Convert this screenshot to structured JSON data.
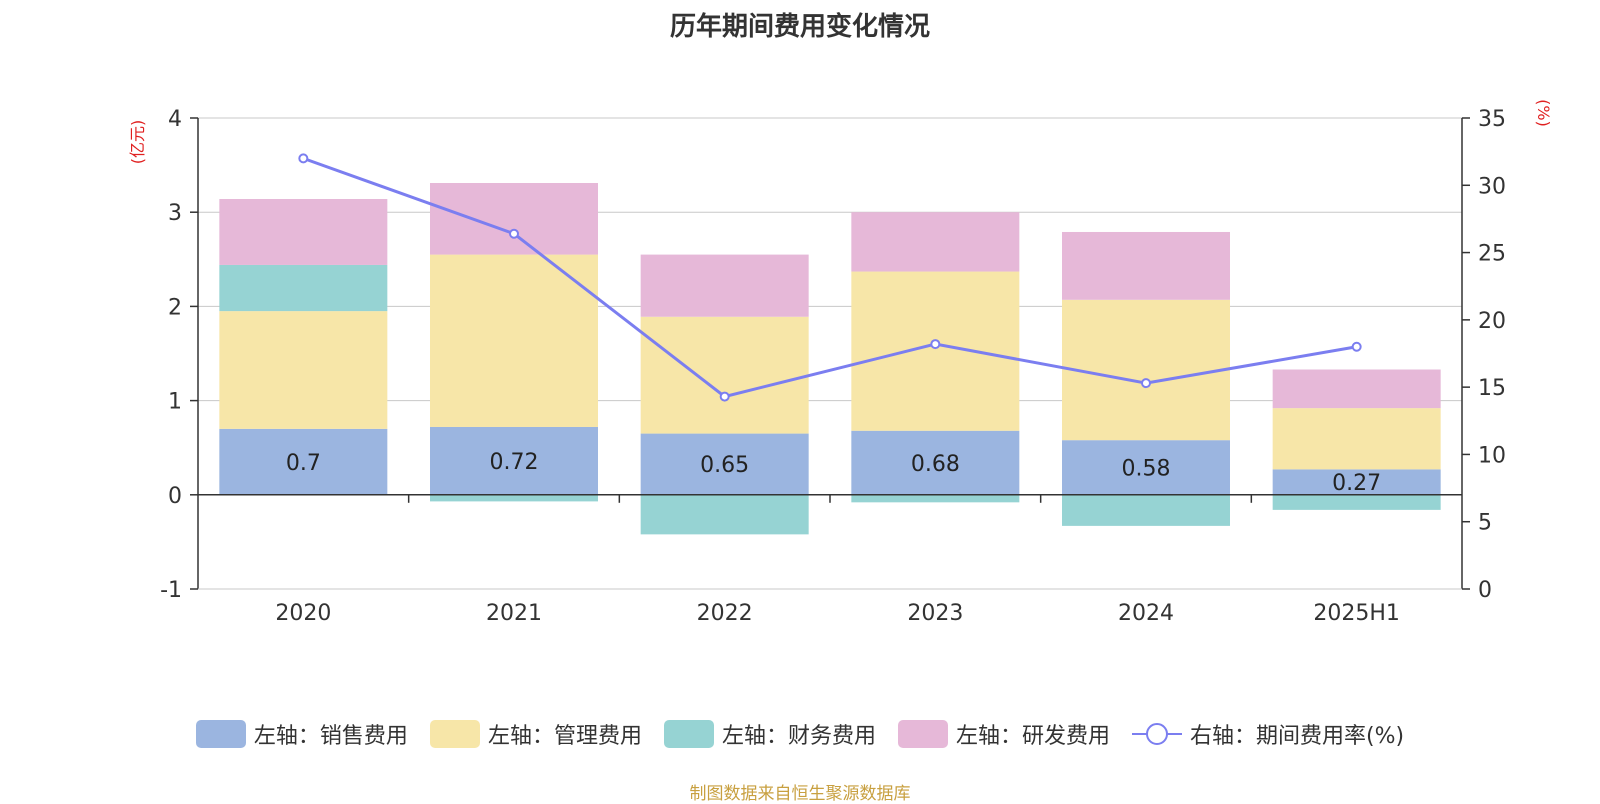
{
  "title": "历年期间费用变化情况",
  "source_note": "制图数据来自恒生聚源数据库",
  "colors": {
    "sales": "#9bb5e0",
    "admin": "#f7e6a8",
    "finance": "#96d3d3",
    "rd": "#e6b8d8",
    "rate": "#7b7ef0",
    "axis_label": "#e02020",
    "grid": "#c8c8c8"
  },
  "chart_data": {
    "type": "bar",
    "stacked": true,
    "categories": [
      "2020",
      "2021",
      "2022",
      "2023",
      "2024",
      "2025H1"
    ],
    "series": [
      {
        "name": "左轴：销售费用",
        "axis": "left",
        "values": [
          0.7,
          0.72,
          0.65,
          0.68,
          0.58,
          0.27
        ],
        "data_labels": [
          "0.7",
          "0.72",
          "0.65",
          "0.68",
          "0.58",
          "0.27"
        ]
      },
      {
        "name": "左轴：管理费用",
        "axis": "left",
        "values": [
          1.25,
          1.83,
          1.24,
          1.69,
          1.49,
          0.65
        ]
      },
      {
        "name": "左轴：财务费用",
        "axis": "left",
        "values": [
          0.49,
          -0.07,
          -0.42,
          -0.08,
          -0.33,
          -0.16
        ]
      },
      {
        "name": "左轴：研发费用",
        "axis": "left",
        "values": [
          0.7,
          0.76,
          0.66,
          0.63,
          0.72,
          0.41
        ]
      },
      {
        "name": "右轴：期间费用率(%)",
        "axis": "right",
        "type": "line",
        "values": [
          32.0,
          26.4,
          14.3,
          18.2,
          15.3,
          18.0
        ]
      }
    ],
    "y_left": {
      "label": "(亿元)",
      "min": -1,
      "max": 4,
      "ticks": [
        "-1",
        "0",
        "1",
        "2",
        "3",
        "4"
      ]
    },
    "y_right": {
      "label": "(%)",
      "min": 0,
      "max": 35,
      "ticks": [
        "0",
        "5",
        "10",
        "15",
        "20",
        "25",
        "30",
        "35"
      ]
    },
    "grid": true,
    "legend_position": "bottom"
  }
}
